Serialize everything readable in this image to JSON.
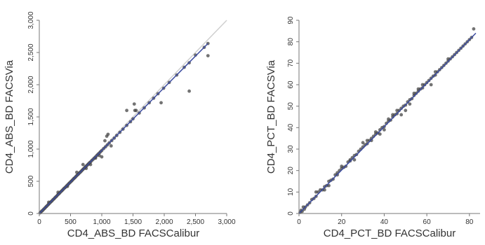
{
  "chart_data": [
    {
      "type": "scatter",
      "title": "",
      "xlabel": "CD4_ABS_BD FACSCalibur",
      "ylabel": "CD4_ABS_BD FACSVia",
      "xlim": [
        0,
        3000
      ],
      "ylim": [
        0,
        3000
      ],
      "xticks": [
        0,
        500,
        1000,
        1500,
        2000,
        2500,
        3000
      ],
      "xtick_labels": [
        "0",
        "500",
        "1,000",
        "1,500",
        "2,000",
        "2,500",
        "3,000"
      ],
      "yticks": [
        0,
        500,
        1000,
        1500,
        2000,
        2500,
        3000
      ],
      "ytick_labels": [
        "0",
        "500",
        "1,000",
        "1,500",
        "2,000",
        "2,500",
        "3,000"
      ],
      "grid": false,
      "colors": {
        "points": "#444444",
        "fit_line": "#3b4ba0",
        "identity_line": "#cfcfcf"
      },
      "fit_line": {
        "x": [
          0,
          2700
        ],
        "y": [
          0,
          2640
        ]
      },
      "identity_line": {
        "x": [
          0,
          3000
        ],
        "y": [
          0,
          3000
        ]
      },
      "series": [
        {
          "x": [
            12,
            25,
            40,
            55,
            70,
            85,
            100,
            115,
            130,
            145,
            160,
            175,
            190,
            205,
            220,
            235,
            250,
            265,
            280,
            295,
            310,
            325,
            340,
            355,
            370,
            385,
            400,
            415,
            430,
            445,
            460,
            475,
            490,
            505,
            520,
            535,
            550,
            565,
            580,
            595,
            610,
            625,
            640,
            655,
            670,
            685,
            700,
            715,
            730,
            745,
            760,
            775,
            790,
            805,
            820,
            840,
            860,
            880,
            900,
            920,
            940,
            960,
            980,
            1000,
            1030,
            1060,
            1090,
            1120,
            1160,
            1200,
            1240,
            1290,
            1340,
            1400,
            1460,
            1500,
            1530,
            1600,
            1680,
            1760,
            1830,
            1900,
            1990,
            2080,
            2200,
            2320,
            2400,
            2500,
            2640,
            2700,
            150,
            300,
            450,
            600,
            750,
            900,
            1050,
            1100,
            1080,
            1000,
            960,
            1150,
            1400,
            1550,
            1520,
            1950,
            2400,
            2700,
            820,
            700
          ],
          "y": [
            10,
            22,
            38,
            50,
            66,
            80,
            96,
            110,
            126,
            140,
            155,
            170,
            185,
            198,
            215,
            228,
            244,
            258,
            272,
            290,
            303,
            318,
            333,
            348,
            362,
            377,
            393,
            405,
            420,
            437,
            450,
            466,
            480,
            495,
            508,
            524,
            540,
            552,
            568,
            583,
            598,
            611,
            627,
            640,
            655,
            670,
            686,
            700,
            714,
            730,
            744,
            758,
            773,
            788,
            800,
            822,
            840,
            860,
            878,
            900,
            920,
            938,
            958,
            978,
            1008,
            1035,
            1065,
            1095,
            1132,
            1170,
            1212,
            1260,
            1310,
            1368,
            1425,
            1470,
            1600,
            1560,
            1640,
            1720,
            1790,
            1860,
            1945,
            2035,
            2150,
            2270,
            2340,
            2460,
            2580,
            2450,
            175,
            330,
            420,
            640,
            700,
            860,
            1130,
            1230,
            1200,
            880,
            900,
            1050,
            1600,
            1600,
            1700,
            1720,
            1900,
            2640,
            760,
            760
          ]
        }
      ]
    },
    {
      "type": "scatter",
      "title": "",
      "xlabel": "CD4_PCT_BD FACSCalibur",
      "ylabel": "CD4_PCT_BD FACSVia",
      "xlim": [
        0,
        85
      ],
      "ylim": [
        0,
        90
      ],
      "xticks": [
        0,
        20,
        40,
        60,
        80
      ],
      "xtick_labels": [
        "0",
        "20",
        "40",
        "60",
        "80"
      ],
      "yticks": [
        0,
        10,
        20,
        30,
        40,
        50,
        60,
        70,
        80,
        90
      ],
      "ytick_labels": [
        "0",
        "10",
        "20",
        "30",
        "40",
        "50",
        "60",
        "70",
        "80",
        "90"
      ],
      "grid": false,
      "colors": {
        "points": "#444444",
        "fit_line": "#3b4ba0"
      },
      "fit_line": {
        "x": [
          0,
          83
        ],
        "y": [
          0,
          84
        ]
      },
      "series": [
        {
          "x": [
            0.5,
            1,
            1.5,
            2,
            2.5,
            3,
            4,
            5,
            6,
            7,
            8,
            9,
            10,
            11,
            12,
            13,
            14,
            15,
            16,
            17,
            18,
            19,
            20,
            21,
            22,
            23,
            24,
            25,
            26,
            27,
            28,
            29,
            30,
            31,
            32,
            33,
            34,
            35,
            36,
            37,
            38,
            39,
            40,
            41,
            42,
            43,
            44,
            45,
            46,
            47,
            48,
            49,
            50,
            51,
            52,
            53,
            54,
            55,
            56,
            57,
            58,
            59,
            60,
            61,
            62,
            63,
            64,
            65,
            66,
            67,
            68,
            69,
            70,
            71,
            72,
            73,
            74,
            75,
            76,
            77,
            78,
            79,
            80,
            81,
            82,
            8,
            14,
            20,
            26,
            32,
            38,
            44,
            50,
            56,
            62,
            34,
            36,
            42,
            48,
            54,
            30,
            58,
            64,
            70,
            12,
            18,
            24,
            40,
            46,
            52
          ],
          "y": [
            0.5,
            1.5,
            1,
            3,
            2,
            3,
            4,
            5,
            6.5,
            7,
            8,
            10,
            11,
            11,
            12.5,
            13,
            15,
            15.5,
            16,
            18,
            18,
            20,
            21,
            21.5,
            22,
            24,
            24.5,
            26,
            27,
            27.5,
            29,
            30,
            31,
            32,
            32.5,
            34,
            34,
            36,
            37,
            37.5,
            39,
            40,
            40.5,
            42,
            43,
            43.5,
            45,
            46,
            46.5,
            48,
            49,
            50,
            50.5,
            52,
            53,
            53.5,
            55,
            56,
            57,
            58,
            58.5,
            60,
            61,
            62,
            63,
            64,
            64.5,
            66,
            67,
            68,
            69,
            70,
            71,
            72,
            73,
            74,
            75,
            76,
            77,
            78,
            79,
            80,
            81,
            82,
            86,
            10,
            13,
            22,
            25,
            34,
            37,
            46,
            48,
            58,
            60,
            35,
            38,
            44,
            46,
            56,
            33,
            60,
            66,
            72,
            11,
            19,
            25,
            39,
            48,
            51
          ]
        }
      ]
    }
  ]
}
